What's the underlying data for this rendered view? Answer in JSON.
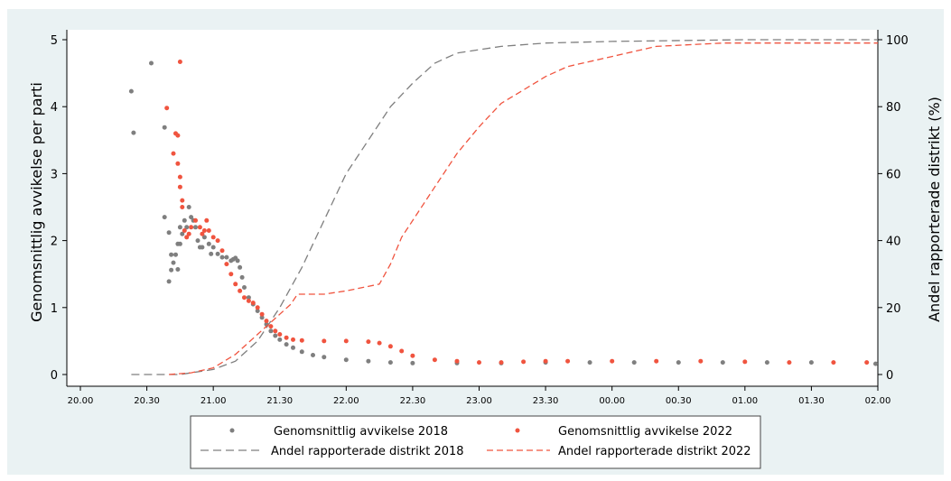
{
  "chart_data": {
    "type": "scatter+line",
    "ylabel_left": "Genomsnittlig avvikelse per parti",
    "ylabel_right": "Andel rapporterade distrikt (%)",
    "ylim_left": [
      0,
      5
    ],
    "ylim_right": [
      0,
      100
    ],
    "left_ticks": [
      "0",
      "1",
      "2",
      "3",
      "4",
      "5"
    ],
    "right_ticks": [
      "0",
      "20",
      "40",
      "60",
      "80",
      "100"
    ],
    "x_ticks": [
      "20.00",
      "20.30",
      "21.00",
      "21.30",
      "22.00",
      "22.30",
      "23.00",
      "23.30",
      "00.00",
      "00.30",
      "01.00",
      "01.30",
      "02.00"
    ],
    "x_range_minutes": [
      0,
      360
    ],
    "colors": {
      "s2018": "#7f7f7f",
      "s2022": "#f0543f"
    },
    "legend": {
      "position": "bottom",
      "dots_2018": "Genomsnittlig avvikelse 2018",
      "dots_2022": "Genomsnittlig avvikelse 2022",
      "line_2018": "Andel rapporterade distrikt 2018",
      "line_2022": "Andel rapporterade distrikt 2022"
    },
    "series": [
      {
        "name": "Genomsnittlig avvikelse 2018",
        "kind": "scatter",
        "axis": "left",
        "color": "#7f7f7f",
        "points": [
          [
            23,
            4.23
          ],
          [
            24,
            3.61
          ],
          [
            32,
            4.65
          ],
          [
            38,
            3.69
          ],
          [
            38,
            2.35
          ],
          [
            40,
            1.39
          ],
          [
            40,
            2.12
          ],
          [
            41,
            1.79
          ],
          [
            41,
            1.56
          ],
          [
            42,
            1.67
          ],
          [
            43,
            1.79
          ],
          [
            44,
            1.57
          ],
          [
            44,
            1.95
          ],
          [
            45,
            2.2
          ],
          [
            45,
            1.95
          ],
          [
            46,
            2.1
          ],
          [
            47,
            2.3
          ],
          [
            48,
            2.2
          ],
          [
            49,
            2.5
          ],
          [
            50,
            2.35
          ],
          [
            51,
            2.3
          ],
          [
            52,
            2.2
          ],
          [
            53,
            2.0
          ],
          [
            54,
            1.9
          ],
          [
            55,
            1.9
          ],
          [
            56,
            2.05
          ],
          [
            58,
            1.95
          ],
          [
            59,
            1.8
          ],
          [
            60,
            1.9
          ],
          [
            62,
            1.8
          ],
          [
            64,
            1.75
          ],
          [
            66,
            1.75
          ],
          [
            68,
            1.7
          ],
          [
            69,
            1.72
          ],
          [
            70,
            1.74
          ],
          [
            71,
            1.7
          ],
          [
            72,
            1.6
          ],
          [
            73,
            1.45
          ],
          [
            74,
            1.3
          ],
          [
            76,
            1.15
          ],
          [
            78,
            1.05
          ],
          [
            80,
            0.95
          ],
          [
            82,
            0.85
          ],
          [
            84,
            0.75
          ],
          [
            86,
            0.65
          ],
          [
            88,
            0.58
          ],
          [
            90,
            0.52
          ],
          [
            93,
            0.45
          ],
          [
            96,
            0.4
          ],
          [
            100,
            0.34
          ],
          [
            105,
            0.29
          ],
          [
            110,
            0.26
          ],
          [
            120,
            0.22
          ],
          [
            130,
            0.2
          ],
          [
            140,
            0.18
          ],
          [
            150,
            0.17
          ],
          [
            170,
            0.17
          ],
          [
            190,
            0.17
          ],
          [
            210,
            0.18
          ],
          [
            230,
            0.18
          ],
          [
            250,
            0.18
          ],
          [
            270,
            0.18
          ],
          [
            290,
            0.18
          ],
          [
            310,
            0.18
          ],
          [
            330,
            0.18
          ],
          [
            359,
            0.16
          ]
        ]
      },
      {
        "name": "Genomsnittlig avvikelse 2022",
        "kind": "scatter",
        "axis": "left",
        "color": "#f0543f",
        "points": [
          [
            39,
            3.98
          ],
          [
            42,
            3.3
          ],
          [
            43,
            3.6
          ],
          [
            44,
            3.15
          ],
          [
            44,
            3.57
          ],
          [
            45,
            4.67
          ],
          [
            45,
            2.95
          ],
          [
            45,
            2.8
          ],
          [
            46,
            2.6
          ],
          [
            46,
            2.5
          ],
          [
            47,
            2.15
          ],
          [
            48,
            2.05
          ],
          [
            49,
            2.1
          ],
          [
            50,
            2.2
          ],
          [
            52,
            2.3
          ],
          [
            54,
            2.2
          ],
          [
            55,
            2.1
          ],
          [
            56,
            2.15
          ],
          [
            57,
            2.3
          ],
          [
            58,
            2.15
          ],
          [
            60,
            2.05
          ],
          [
            62,
            2.0
          ],
          [
            64,
            1.85
          ],
          [
            66,
            1.65
          ],
          [
            68,
            1.5
          ],
          [
            70,
            1.35
          ],
          [
            72,
            1.25
          ],
          [
            74,
            1.15
          ],
          [
            76,
            1.1
          ],
          [
            78,
            1.07
          ],
          [
            80,
            1.0
          ],
          [
            82,
            0.9
          ],
          [
            84,
            0.8
          ],
          [
            86,
            0.72
          ],
          [
            88,
            0.65
          ],
          [
            90,
            0.6
          ],
          [
            93,
            0.55
          ],
          [
            96,
            0.52
          ],
          [
            100,
            0.51
          ],
          [
            110,
            0.5
          ],
          [
            120,
            0.5
          ],
          [
            130,
            0.49
          ],
          [
            135,
            0.47
          ],
          [
            140,
            0.42
          ],
          [
            145,
            0.35
          ],
          [
            150,
            0.28
          ],
          [
            160,
            0.22
          ],
          [
            170,
            0.2
          ],
          [
            180,
            0.18
          ],
          [
            190,
            0.18
          ],
          [
            200,
            0.19
          ],
          [
            210,
            0.2
          ],
          [
            220,
            0.2
          ],
          [
            240,
            0.2
          ],
          [
            260,
            0.2
          ],
          [
            280,
            0.2
          ],
          [
            300,
            0.19
          ],
          [
            320,
            0.18
          ],
          [
            340,
            0.18
          ],
          [
            355,
            0.18
          ]
        ]
      },
      {
        "name": "Andel rapporterade distrikt 2018",
        "kind": "line",
        "axis": "right",
        "color": "#7f7f7f",
        "dash": "9,5",
        "points": [
          [
            23,
            0
          ],
          [
            45,
            0
          ],
          [
            50,
            0.5
          ],
          [
            60,
            1.5
          ],
          [
            70,
            4
          ],
          [
            80,
            10
          ],
          [
            90,
            20
          ],
          [
            100,
            32
          ],
          [
            110,
            46
          ],
          [
            120,
            60
          ],
          [
            130,
            70
          ],
          [
            140,
            80
          ],
          [
            150,
            87
          ],
          [
            160,
            93
          ],
          [
            170,
            96
          ],
          [
            180,
            97
          ],
          [
            190,
            98
          ],
          [
            210,
            99
          ],
          [
            240,
            99.5
          ],
          [
            300,
            100
          ],
          [
            360,
            100
          ]
        ]
      },
      {
        "name": "Andel rapporterade distrikt 2022",
        "kind": "line",
        "axis": "right",
        "color": "#f0543f",
        "dash": "7,4",
        "points": [
          [
            40,
            0
          ],
          [
            50,
            0.5
          ],
          [
            60,
            2
          ],
          [
            70,
            6
          ],
          [
            80,
            12
          ],
          [
            90,
            18
          ],
          [
            95,
            21
          ],
          [
            98,
            24
          ],
          [
            110,
            24
          ],
          [
            120,
            25
          ],
          [
            135,
            27
          ],
          [
            140,
            33
          ],
          [
            145,
            41
          ],
          [
            160,
            56
          ],
          [
            170,
            66
          ],
          [
            180,
            74
          ],
          [
            190,
            81
          ],
          [
            200,
            85
          ],
          [
            210,
            89
          ],
          [
            220,
            92
          ],
          [
            240,
            95
          ],
          [
            260,
            98
          ],
          [
            290,
            99
          ],
          [
            360,
            99
          ]
        ]
      }
    ]
  }
}
